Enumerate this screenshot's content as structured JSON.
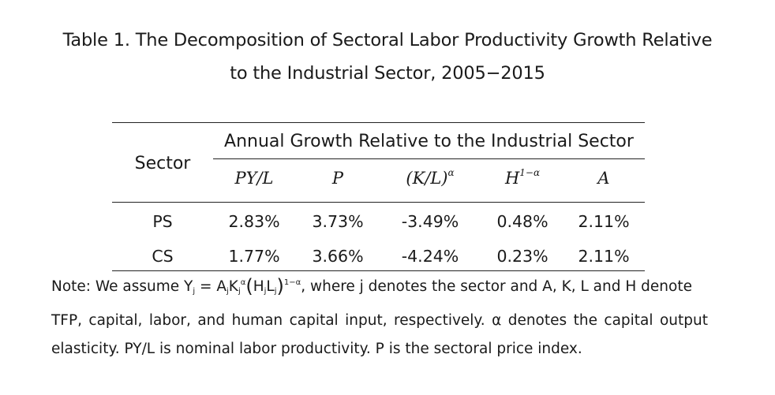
{
  "caption": {
    "line1": "Table 1. The Decomposition of Sectoral Labor Productivity Growth Relative",
    "line2": "to the Industrial Sector, 2005−2015"
  },
  "table": {
    "row_header": "Sector",
    "group_header": "Annual Growth Relative to the Industrial Sector",
    "columns": {
      "c1": "PY/L",
      "c2": "P",
      "c3_base": "(K/L)",
      "c3_exp": "α",
      "c4_base": "H",
      "c4_exp": "1−α",
      "c5": "A"
    },
    "rows": [
      {
        "sector": "PS",
        "values": [
          "2.83%",
          "3.73%",
          "-3.49%",
          "0.48%",
          "2.11%"
        ]
      },
      {
        "sector": "CS",
        "values": [
          "1.77%",
          "3.66%",
          "-4.24%",
          "0.23%",
          "2.11%"
        ]
      }
    ]
  },
  "note": {
    "lead": "Note: We assume Y",
    "eq_sub_j": "j",
    "eq_equals": " = A",
    "eq_K": "K",
    "eq_alpha": "α",
    "eq_open": "(",
    "eq_H": "H",
    "eq_L": "L",
    "eq_close": ")",
    "eq_exp": "1−α",
    "tail1": ", where j denotes the sector and A, K, L and H denote",
    "line2": "TFP, capital, labor, and human capital input, respectively. α denotes the capital output",
    "line3": "elasticity. PY/L is nominal labor productivity. P is the sectoral price index."
  }
}
